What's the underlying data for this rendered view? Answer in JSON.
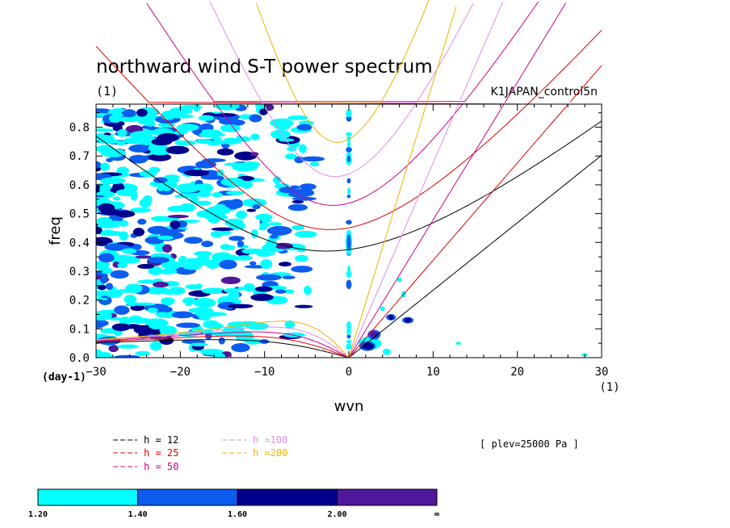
{
  "chart_data": {
    "type": "contour",
    "title": "northward wind S-T power spectrum",
    "subtitle_left": "(1)",
    "subtitle_right": "K1JAPAN_control5n",
    "xlabel": "wvn",
    "ylabel": "freq",
    "x_units_label": "(1)",
    "y_units_label": "(day-1)",
    "xlim": [
      -30,
      30
    ],
    "ylim": [
      0,
      0.88
    ],
    "x_ticks": [
      -30,
      -20,
      -10,
      0,
      10,
      20,
      30
    ],
    "x_tick_labels": [
      "−30",
      "−20",
      "−10",
      "0",
      "10",
      "20",
      "30"
    ],
    "y_ticks": [
      0,
      0.1,
      0.2,
      0.3,
      0.4,
      0.5,
      0.6,
      0.7,
      0.8
    ],
    "y_tick_labels": [
      "0.0",
      "0.1",
      "0.2",
      "0.3",
      "0.4",
      "0.5",
      "0.6",
      "0.7",
      "0.8"
    ],
    "annotation": "[ plev=25000 Pa ]",
    "dispersion_legend": [
      {
        "label": "h = 12",
        "color": "#000000"
      },
      {
        "label": "h = 25",
        "color": "#e00000"
      },
      {
        "label": "h = 50",
        "color": "#d0008c"
      },
      {
        "label": "h =100",
        "color": "#e48ce0"
      },
      {
        "label": "h =200",
        "color": "#f0b400"
      }
    ],
    "shading_levels": {
      "labels": [
        "1.20",
        "1.40",
        "1.60",
        "2.00",
        "∞"
      ],
      "colors": [
        "#00ffff",
        "#0c5cf0",
        "#00008c",
        "#50189c"
      ]
    },
    "equivalent_depths": [
      12,
      25,
      50,
      100,
      200
    ]
  }
}
